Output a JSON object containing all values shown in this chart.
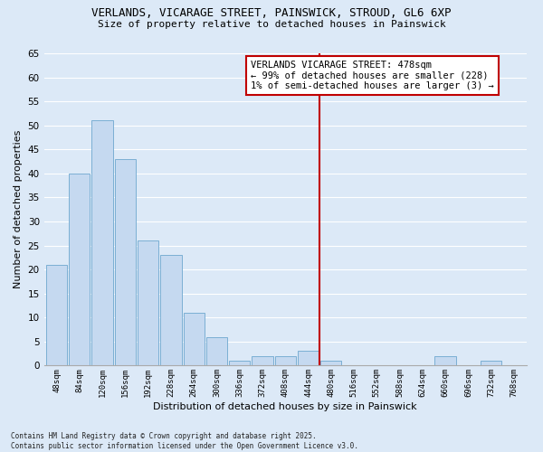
{
  "title_line1": "VERLANDS, VICARAGE STREET, PAINSWICK, STROUD, GL6 6XP",
  "title_line2": "Size of property relative to detached houses in Painswick",
  "xlabel": "Distribution of detached houses by size in Painswick",
  "ylabel": "Number of detached properties",
  "bar_labels": [
    "48sqm",
    "84sqm",
    "120sqm",
    "156sqm",
    "192sqm",
    "228sqm",
    "264sqm",
    "300sqm",
    "336sqm",
    "372sqm",
    "408sqm",
    "444sqm",
    "480sqm",
    "516sqm",
    "552sqm",
    "588sqm",
    "624sqm",
    "660sqm",
    "696sqm",
    "732sqm",
    "768sqm"
  ],
  "bar_values": [
    21,
    40,
    51,
    43,
    26,
    23,
    11,
    6,
    1,
    2,
    2,
    3,
    1,
    0,
    0,
    0,
    0,
    2,
    0,
    1,
    0
  ],
  "bar_color": "#c5d9f0",
  "bar_edgecolor": "#7bafd4",
  "vline_color": "#c00000",
  "ylim": [
    0,
    65
  ],
  "yticks": [
    0,
    5,
    10,
    15,
    20,
    25,
    30,
    35,
    40,
    45,
    50,
    55,
    60,
    65
  ],
  "annotation_title": "VERLANDS VICARAGE STREET: 478sqm",
  "annotation_line2": "← 99% of detached houses are smaller (228)",
  "annotation_line3": "1% of semi-detached houses are larger (3) →",
  "annotation_box_color": "#c00000",
  "background_color": "#dce9f7",
  "fig_background_color": "#dce9f7",
  "grid_color": "#ffffff",
  "footer_line1": "Contains HM Land Registry data © Crown copyright and database right 2025.",
  "footer_line2": "Contains public sector information licensed under the Open Government Licence v3.0."
}
